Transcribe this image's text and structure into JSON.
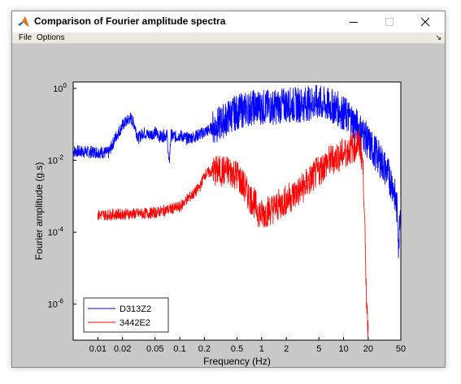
{
  "window": {
    "title": "Comparison of Fourier amplitude spectra",
    "icon": "matlab-icon"
  },
  "menu": {
    "items": [
      "File",
      "Options"
    ],
    "dock_arrow": "↘"
  },
  "colors": {
    "figure_bg": "#c8c8c8",
    "axes_bg": "#ffffff",
    "series_1": "#0000ff",
    "series_2": "#ff0000"
  },
  "chart_data": {
    "type": "line",
    "xscale": "log",
    "yscale": "log",
    "xlim": [
      0.005,
      50
    ],
    "ylim": [
      1e-07,
      1.5
    ],
    "xlabel": "Frequency (Hz)",
    "ylabel": "Fourier amplitude (g.s)",
    "x_ticks": [
      {
        "value": 0.01,
        "label": "0.01"
      },
      {
        "value": 0.02,
        "label": "0.02"
      },
      {
        "value": 0.05,
        "label": "0.05"
      },
      {
        "value": 0.1,
        "label": "0.1"
      },
      {
        "value": 0.2,
        "label": "0.2"
      },
      {
        "value": 0.5,
        "label": "0.5"
      },
      {
        "value": 1,
        "label": "1"
      },
      {
        "value": 2,
        "label": "2"
      },
      {
        "value": 5,
        "label": "5"
      },
      {
        "value": 10,
        "label": "10"
      },
      {
        "value": 20,
        "label": "20"
      },
      {
        "value": 50,
        "label": "50"
      }
    ],
    "y_ticks": [
      {
        "value": 1,
        "base": "10",
        "exp": "0"
      },
      {
        "value": 0.01,
        "base": "10",
        "exp": "-2"
      },
      {
        "value": 0.0001,
        "base": "10",
        "exp": "-4"
      },
      {
        "value": 1e-06,
        "base": "10",
        "exp": "-6"
      }
    ],
    "grid": false,
    "legend_position": "bottom-left",
    "series": [
      {
        "name": "D313Z2",
        "color": "#0000ff",
        "points": [
          [
            0.005,
            0.018
          ],
          [
            0.0075,
            0.017
          ],
          [
            0.01,
            0.017
          ],
          [
            0.0135,
            0.016
          ],
          [
            0.017,
            0.05
          ],
          [
            0.0205,
            0.1
          ],
          [
            0.025,
            0.15
          ],
          [
            0.028,
            0.1
          ],
          [
            0.031,
            0.04
          ],
          [
            0.036,
            0.06
          ],
          [
            0.042,
            0.05
          ],
          [
            0.05,
            0.06
          ],
          [
            0.058,
            0.045
          ],
          [
            0.065,
            0.05
          ],
          [
            0.07,
            0.05
          ],
          [
            0.074,
            0.007
          ],
          [
            0.078,
            0.05
          ],
          [
            0.09,
            0.045
          ],
          [
            0.1,
            0.05
          ],
          [
            0.12,
            0.04
          ],
          [
            0.15,
            0.045
          ],
          [
            0.2,
            0.06
          ],
          [
            0.3,
            0.1
          ],
          [
            0.45,
            0.2
          ],
          [
            0.6,
            0.25
          ],
          [
            0.8,
            0.3
          ],
          [
            1,
            0.3
          ],
          [
            1.5,
            0.3
          ],
          [
            2,
            0.35
          ],
          [
            3,
            0.35
          ],
          [
            4,
            0.4
          ],
          [
            5,
            0.4
          ],
          [
            6,
            0.35
          ],
          [
            8,
            0.3
          ],
          [
            10,
            0.2
          ],
          [
            12,
            0.15
          ],
          [
            15,
            0.08
          ],
          [
            18,
            0.05
          ],
          [
            20,
            0.03
          ],
          [
            25,
            0.015
          ],
          [
            30,
            0.008
          ],
          [
            35,
            0.004
          ],
          [
            40,
            0.002
          ],
          [
            43,
            0.0008
          ],
          [
            46,
            0.0003
          ],
          [
            47,
            2e-05
          ],
          [
            48,
            0.0003
          ],
          [
            50,
            0.0005
          ]
        ]
      },
      {
        "name": "3442E2",
        "color": "#ff0000",
        "points": [
          [
            0.01,
            0.0003
          ],
          [
            0.02,
            0.00032
          ],
          [
            0.035,
            0.00033
          ],
          [
            0.05,
            0.00035
          ],
          [
            0.08,
            0.00045
          ],
          [
            0.1,
            0.0005
          ],
          [
            0.12,
            0.0008
          ],
          [
            0.15,
            0.0012
          ],
          [
            0.18,
            0.002
          ],
          [
            0.2,
            0.004
          ],
          [
            0.25,
            0.005
          ],
          [
            0.3,
            0.005
          ],
          [
            0.4,
            0.005
          ],
          [
            0.5,
            0.004
          ],
          [
            0.6,
            0.002
          ],
          [
            0.7,
            0.001
          ],
          [
            0.8,
            0.0007
          ],
          [
            0.9,
            0.0004
          ],
          [
            1,
            0.0003
          ],
          [
            1.2,
            0.0004
          ],
          [
            1.5,
            0.0005
          ],
          [
            2,
            0.0008
          ],
          [
            3,
            0.0015
          ],
          [
            4,
            0.003
          ],
          [
            5,
            0.005
          ],
          [
            6,
            0.008
          ],
          [
            8,
            0.012
          ],
          [
            10,
            0.015
          ],
          [
            12,
            0.02
          ],
          [
            14,
            0.025
          ],
          [
            15,
            0.03
          ],
          [
            16,
            0.025
          ],
          [
            17,
            0.01
          ],
          [
            18,
            0.0006
          ],
          [
            18.5,
            1e-05
          ],
          [
            19,
            2e-06
          ],
          [
            19.5,
            5e-07
          ],
          [
            20,
            2e-07
          ]
        ]
      }
    ]
  }
}
